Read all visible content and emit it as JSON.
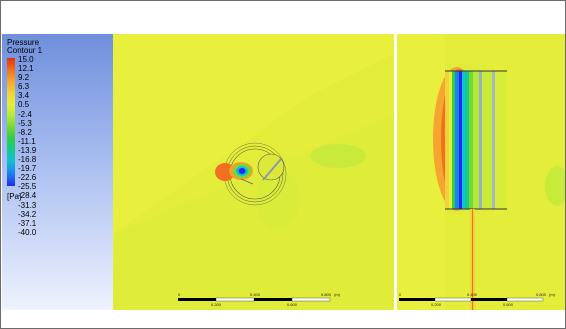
{
  "legend": {
    "title": "Pressure",
    "subtitle": "Contour 1",
    "unit": "[Pa]",
    "levels": [
      "15.0",
      "12.1",
      "9.2",
      "6.3",
      "3.4",
      "0.5",
      "-2.4",
      "-5.3",
      "-8.2",
      "-11.1",
      "-13.9",
      "-16.8",
      "-19.7",
      "-22.6",
      "-25.5",
      "-28.4",
      "-31.3",
      "-34.2",
      "-37.1",
      "-40.0"
    ]
  },
  "colors": {
    "field_yellow": "#e4ee3a",
    "field_green": "#c8ea3a",
    "high_pressure": "#f07020",
    "low_pressure": "#1f2bf0",
    "frame_border": "#6b6b6b"
  },
  "left_view": {
    "scale_labels": [
      "0",
      "0.400",
      "0.800",
      "(m)"
    ],
    "scale_labels_bottom": [
      "0.200",
      "0.600"
    ]
  },
  "right_view": {
    "scale_labels": [
      "0",
      "0.400",
      "0.800",
      "(m)"
    ],
    "scale_labels_bottom": [
      "0.200",
      "0.600"
    ]
  }
}
